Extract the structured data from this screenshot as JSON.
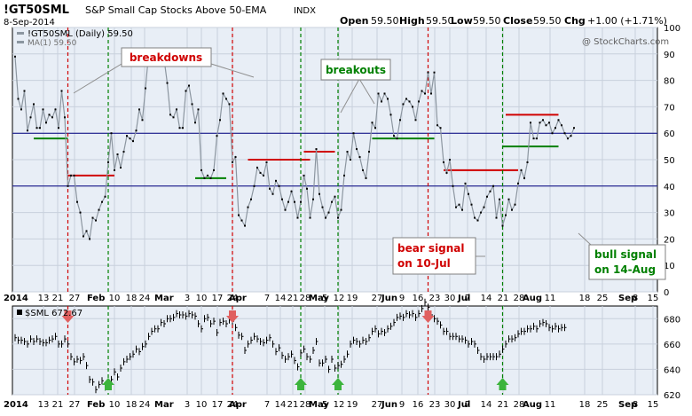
{
  "header": {
    "symbol": "!GT50SML",
    "description": "S&P Small Cap Stocks Above 50-EMA",
    "exchange": "INDX",
    "date": "8-Sep-2014",
    "open_label": "Open",
    "open": "59.50",
    "high_label": "High",
    "high": "59.50",
    "low_label": "Low",
    "low": "59.50",
    "close_label": "Close",
    "close": "59.50",
    "chg_label": "Chg",
    "chg": "+1.00 (+1.71%)",
    "watermark": "@ StockCharts.com"
  },
  "colors": {
    "panel_bg": "#e8eef6",
    "main_line": "#8c96a0",
    "signal_red": "#d00000",
    "signal_green": "#008000",
    "level_line": "#000080",
    "up_arrow": "#3cb43c",
    "down_arrow": "#e06060"
  },
  "chart_data": [
    {
      "type": "line",
      "name": "upper-panel",
      "legend": [
        "!GT50SML (Daily) 59.50",
        "MA(1) 59.50"
      ],
      "ylim": [
        0,
        100
      ],
      "yticks": [
        0,
        10,
        20,
        30,
        40,
        50,
        60,
        70,
        80,
        90,
        100
      ],
      "reference_lines": [
        40,
        60
      ],
      "x_axis": {
        "year": "2014",
        "days": [
          "13",
          "21",
          "27",
          "10",
          "18",
          "24",
          "3",
          "10",
          "17",
          "24",
          "7",
          "14",
          "21",
          "28",
          "5",
          "12",
          "19",
          "27",
          "9",
          "16",
          "23",
          "30",
          "7",
          "14",
          "21",
          "28",
          "11",
          "18",
          "25",
          "8",
          "15"
        ],
        "months": [
          "Feb",
          "Mar",
          "Apr",
          "May",
          "Jun",
          "Jul",
          "Aug",
          "Sep"
        ]
      },
      "values": [
        89,
        73,
        69,
        76,
        61,
        66,
        71,
        62,
        62,
        69,
        64,
        67,
        66,
        69,
        62,
        76,
        66,
        40,
        44,
        44,
        34,
        30,
        21,
        23,
        20,
        28,
        27,
        31,
        34,
        36,
        49,
        60,
        46,
        52,
        47,
        53,
        59,
        58,
        57,
        61,
        69,
        65,
        77,
        90,
        88,
        86,
        90,
        87,
        88,
        79,
        67,
        66,
        69,
        62,
        62,
        76,
        78,
        71,
        64,
        69,
        46,
        43,
        44,
        43,
        46,
        59,
        65,
        75,
        73,
        71,
        49,
        51,
        29,
        27,
        25,
        32,
        35,
        40,
        47,
        45,
        44,
        49,
        39,
        37,
        42,
        40,
        35,
        31,
        34,
        38,
        34,
        28,
        34,
        44,
        39,
        28,
        35,
        54,
        37,
        32,
        28,
        30,
        34,
        36,
        28,
        31,
        44,
        53,
        50,
        60,
        54,
        51,
        46,
        43,
        53,
        64,
        62,
        75,
        72,
        75,
        73,
        67,
        59,
        58,
        65,
        71,
        73,
        72,
        70,
        65,
        72,
        76,
        75,
        83,
        75,
        83,
        63,
        62,
        49,
        45,
        50,
        40,
        32,
        33,
        31,
        41,
        37,
        33,
        28,
        27,
        30,
        32,
        36,
        38,
        40,
        28,
        35,
        25,
        29,
        35,
        31,
        33,
        41,
        46,
        43,
        49,
        64,
        58,
        58,
        64,
        65,
        63,
        64,
        60,
        62,
        65,
        63,
        60,
        58,
        59,
        62
      ],
      "signals": {
        "red_verticals": [
          17,
          70,
          133
        ],
        "green_verticals": [
          30,
          92,
          104,
          157
        ]
      },
      "support_resistance": [
        {
          "color": "green",
          "from": 6,
          "to": 17,
          "level": 58
        },
        {
          "color": "red",
          "from": 17,
          "to": 32,
          "level": 44
        },
        {
          "color": "green",
          "from": 58,
          "to": 68,
          "level": 43
        },
        {
          "color": "red",
          "from": 75,
          "to": 95,
          "level": 50
        },
        {
          "color": "red",
          "from": 93,
          "to": 103,
          "level": 53
        },
        {
          "color": "green",
          "from": 115,
          "to": 135,
          "level": 58
        },
        {
          "color": "red",
          "from": 138,
          "to": 162,
          "level": 46
        },
        {
          "color": "red",
          "from": 158,
          "to": 175,
          "level": 67
        },
        {
          "color": "green",
          "from": 157,
          "to": 175,
          "level": 55
        }
      ],
      "annotations": {
        "breakdowns": "breakdowns",
        "breakouts": "breakouts",
        "bear_line1": "bear signal",
        "bear_line2": "on 10-Jul",
        "bull_line1": "bull signal",
        "bull_line2": "on 14-Aug"
      }
    },
    {
      "type": "ohlc",
      "name": "lower-panel",
      "legend": "$SML 672.67",
      "ylim": [
        620,
        690
      ],
      "yticks": [
        620,
        640,
        660,
        680
      ],
      "values": [
        665,
        663,
        663,
        662,
        660,
        664,
        662,
        664,
        662,
        661,
        661,
        663,
        664,
        666,
        660,
        660,
        664,
        660,
        650,
        646,
        648,
        647,
        650,
        643,
        632,
        630,
        624,
        628,
        631,
        626,
        630,
        632,
        638,
        634,
        641,
        646,
        648,
        650,
        652,
        656,
        654,
        658,
        660,
        666,
        670,
        672,
        672,
        677,
        676,
        680,
        680,
        681,
        684,
        683,
        683,
        682,
        684,
        683,
        682,
        676,
        672,
        680,
        681,
        676,
        678,
        669,
        677,
        678,
        676,
        679,
        678,
        673,
        667,
        666,
        655,
        660,
        663,
        666,
        664,
        662,
        661,
        663,
        665,
        660,
        654,
        657,
        651,
        648,
        650,
        652,
        647,
        642,
        653,
        656,
        650,
        648,
        655,
        662,
        645,
        645,
        648,
        640,
        648,
        641,
        643,
        644,
        648,
        652,
        660,
        663,
        662,
        660,
        663,
        662,
        665,
        670,
        672,
        668,
        670,
        669,
        672,
        674,
        677,
        681,
        682,
        681,
        684,
        683,
        684,
        681,
        684,
        688,
        693,
        689,
        683,
        680,
        678,
        675,
        670,
        670,
        666,
        666,
        666,
        664,
        664,
        663,
        660,
        662,
        660,
        655,
        650,
        648,
        650,
        650,
        650,
        650,
        652,
        656,
        660,
        664,
        664,
        665,
        668,
        670,
        670,
        672,
        672,
        674,
        672,
        676,
        677,
        676,
        673,
        672,
        674,
        672,
        673,
        673
      ]
    }
  ]
}
